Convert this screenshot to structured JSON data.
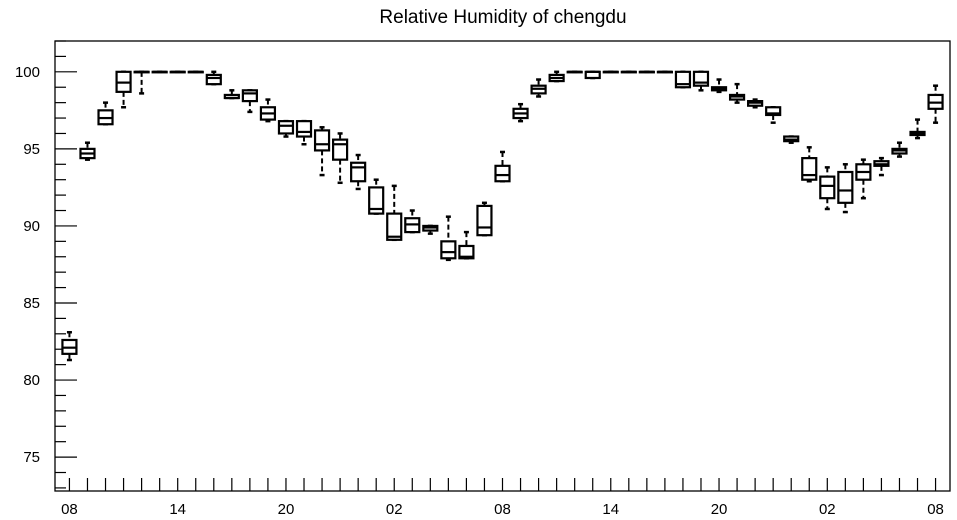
{
  "chart_data": {
    "type": "box",
    "title": "Relative Humidity of chengdu",
    "xlabel": "",
    "ylabel": "",
    "ylim": [
      72.8,
      102.0
    ],
    "y_ticks": [
      75,
      80,
      85,
      90,
      95,
      100
    ],
    "x_tick_labels": [
      "08",
      "14",
      "20",
      "02",
      "08",
      "14",
      "20",
      "02",
      "08"
    ],
    "x_tick_hours": [
      0,
      6,
      12,
      18,
      24,
      30,
      36,
      42,
      48
    ],
    "x_range_hours": [
      -0.8,
      48.8
    ],
    "grid": false,
    "legend": "none",
    "boxes": [
      {
        "hour": 0,
        "min": 81.3,
        "q1": 81.7,
        "median": 82.1,
        "q3": 82.6,
        "max": 83.1
      },
      {
        "hour": 1,
        "min": 94.3,
        "q1": 94.4,
        "median": 94.7,
        "q3": 95.0,
        "max": 95.4
      },
      {
        "hour": 2,
        "min": 96.6,
        "q1": 96.6,
        "median": 97.0,
        "q3": 97.5,
        "max": 98.0
      },
      {
        "hour": 3,
        "min": 97.7,
        "q1": 98.7,
        "median": 99.3,
        "q3": 100.0,
        "max": 100.0
      },
      {
        "hour": 4,
        "min": 98.6,
        "q1": 100.0,
        "median": 100.0,
        "q3": 100.0,
        "max": 100.0
      },
      {
        "hour": 5,
        "min": 100.0,
        "q1": 100.0,
        "median": 100.0,
        "q3": 100.0,
        "max": 100.0
      },
      {
        "hour": 6,
        "min": 100.0,
        "q1": 100.0,
        "median": 100.0,
        "q3": 100.0,
        "max": 100.0
      },
      {
        "hour": 7,
        "min": 100.0,
        "q1": 100.0,
        "median": 100.0,
        "q3": 100.0,
        "max": 100.0
      },
      {
        "hour": 8,
        "min": 99.2,
        "q1": 99.2,
        "median": 99.6,
        "q3": 99.8,
        "max": 100.0
      },
      {
        "hour": 9,
        "min": 98.3,
        "q1": 98.3,
        "median": 98.3,
        "q3": 98.5,
        "max": 98.8
      },
      {
        "hour": 10,
        "min": 97.4,
        "q1": 98.1,
        "median": 98.6,
        "q3": 98.8,
        "max": 98.8
      },
      {
        "hour": 11,
        "min": 96.8,
        "q1": 96.9,
        "median": 97.3,
        "q3": 97.7,
        "max": 98.2
      },
      {
        "hour": 12,
        "min": 95.8,
        "q1": 96.0,
        "median": 96.5,
        "q3": 96.8,
        "max": 96.8
      },
      {
        "hour": 13,
        "min": 95.3,
        "q1": 95.8,
        "median": 96.1,
        "q3": 96.8,
        "max": 96.8
      },
      {
        "hour": 14,
        "min": 93.3,
        "q1": 94.9,
        "median": 95.3,
        "q3": 96.2,
        "max": 96.4
      },
      {
        "hour": 15,
        "min": 92.8,
        "q1": 94.3,
        "median": 95.3,
        "q3": 95.6,
        "max": 96.0
      },
      {
        "hour": 16,
        "min": 92.4,
        "q1": 92.9,
        "median": 93.8,
        "q3": 94.1,
        "max": 94.6
      },
      {
        "hour": 17,
        "min": 90.8,
        "q1": 90.8,
        "median": 91.1,
        "q3": 92.5,
        "max": 93.0
      },
      {
        "hour": 18,
        "min": 89.1,
        "q1": 89.1,
        "median": 89.3,
        "q3": 90.8,
        "max": 92.6
      },
      {
        "hour": 19,
        "min": 89.6,
        "q1": 89.6,
        "median": 90.1,
        "q3": 90.5,
        "max": 91.0
      },
      {
        "hour": 20,
        "min": 89.5,
        "q1": 89.7,
        "median": 89.9,
        "q3": 90.0,
        "max": 90.0
      },
      {
        "hour": 21,
        "min": 87.8,
        "q1": 87.9,
        "median": 88.3,
        "q3": 89.0,
        "max": 90.6
      },
      {
        "hour": 22,
        "min": 87.9,
        "q1": 87.9,
        "median": 88.0,
        "q3": 88.7,
        "max": 89.6
      },
      {
        "hour": 23,
        "min": 89.4,
        "q1": 89.4,
        "median": 89.9,
        "q3": 91.3,
        "max": 91.5
      },
      {
        "hour": 24,
        "min": 92.9,
        "q1": 92.9,
        "median": 93.3,
        "q3": 93.9,
        "max": 94.8
      },
      {
        "hour": 25,
        "min": 96.8,
        "q1": 97.0,
        "median": 97.3,
        "q3": 97.6,
        "max": 97.9
      },
      {
        "hour": 26,
        "min": 98.4,
        "q1": 98.6,
        "median": 98.9,
        "q3": 99.1,
        "max": 99.5
      },
      {
        "hour": 27,
        "min": 99.4,
        "q1": 99.4,
        "median": 99.6,
        "q3": 99.8,
        "max": 100.0
      },
      {
        "hour": 28,
        "min": 100.0,
        "q1": 100.0,
        "median": 100.0,
        "q3": 100.0,
        "max": 100.0
      },
      {
        "hour": 29,
        "min": 99.6,
        "q1": 99.6,
        "median": 100.0,
        "q3": 100.0,
        "max": 100.0
      },
      {
        "hour": 30,
        "min": 100.0,
        "q1": 100.0,
        "median": 100.0,
        "q3": 100.0,
        "max": 100.0
      },
      {
        "hour": 31,
        "min": 100.0,
        "q1": 100.0,
        "median": 100.0,
        "q3": 100.0,
        "max": 100.0
      },
      {
        "hour": 32,
        "min": 100.0,
        "q1": 100.0,
        "median": 100.0,
        "q3": 100.0,
        "max": 100.0
      },
      {
        "hour": 33,
        "min": 100.0,
        "q1": 100.0,
        "median": 100.0,
        "q3": 100.0,
        "max": 100.0
      },
      {
        "hour": 34,
        "min": 99.0,
        "q1": 99.0,
        "median": 99.2,
        "q3": 100.0,
        "max": 100.0
      },
      {
        "hour": 35,
        "min": 98.8,
        "q1": 99.1,
        "median": 99.3,
        "q3": 100.0,
        "max": 100.0
      },
      {
        "hour": 36,
        "min": 98.7,
        "q1": 98.8,
        "median": 98.9,
        "q3": 99.0,
        "max": 99.5
      },
      {
        "hour": 37,
        "min": 98.0,
        "q1": 98.2,
        "median": 98.4,
        "q3": 98.5,
        "max": 99.2
      },
      {
        "hour": 38,
        "min": 97.7,
        "q1": 97.8,
        "median": 98.0,
        "q3": 98.1,
        "max": 98.2
      },
      {
        "hour": 39,
        "min": 96.7,
        "q1": 97.2,
        "median": 97.3,
        "q3": 97.7,
        "max": 97.7
      },
      {
        "hour": 40,
        "min": 95.4,
        "q1": 95.5,
        "median": 95.6,
        "q3": 95.8,
        "max": 95.8
      },
      {
        "hour": 41,
        "min": 92.9,
        "q1": 93.0,
        "median": 93.3,
        "q3": 94.4,
        "max": 95.1
      },
      {
        "hour": 42,
        "min": 91.1,
        "q1": 91.8,
        "median": 92.6,
        "q3": 93.2,
        "max": 93.8
      },
      {
        "hour": 43,
        "min": 90.9,
        "q1": 91.5,
        "median": 92.3,
        "q3": 93.5,
        "max": 94.0
      },
      {
        "hour": 44,
        "min": 91.8,
        "q1": 93.0,
        "median": 93.5,
        "q3": 94.0,
        "max": 94.3
      },
      {
        "hour": 45,
        "min": 93.3,
        "q1": 93.9,
        "median": 94.0,
        "q3": 94.2,
        "max": 94.4
      },
      {
        "hour": 46,
        "min": 94.5,
        "q1": 94.7,
        "median": 94.9,
        "q3": 95.0,
        "max": 95.4
      },
      {
        "hour": 47,
        "min": 95.7,
        "q1": 95.9,
        "median": 96.0,
        "q3": 96.1,
        "max": 96.9
      },
      {
        "hour": 48,
        "min": 96.7,
        "q1": 97.6,
        "median": 98.0,
        "q3": 98.5,
        "max": 99.1
      }
    ]
  }
}
